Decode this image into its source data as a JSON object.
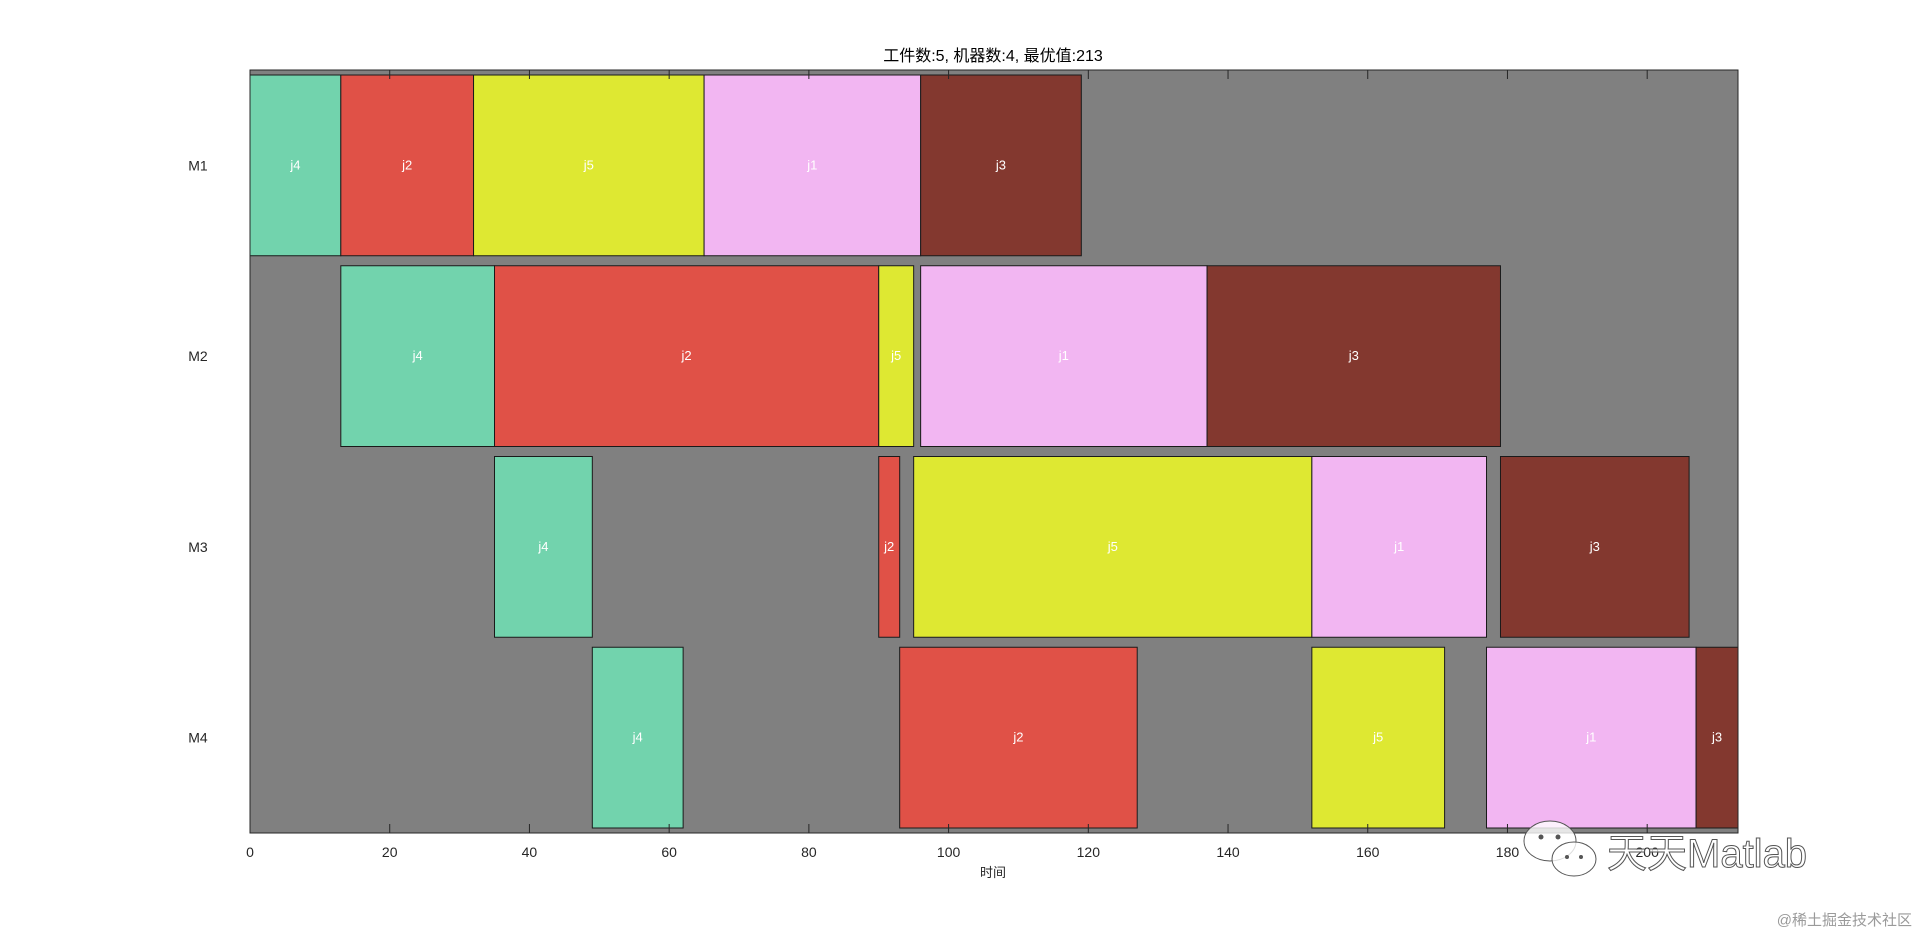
{
  "chart_data": {
    "type": "gantt",
    "title": "工件数:5, 机器数:4, 最优值:213",
    "xlabel": "时间",
    "ylabel": "",
    "xlim": [
      0,
      213
    ],
    "xticks": [
      0,
      20,
      40,
      60,
      80,
      100,
      120,
      140,
      160,
      180,
      200
    ],
    "machines": [
      "M1",
      "M2",
      "M3",
      "M4"
    ],
    "background_color": "#808080",
    "job_colors": {
      "j1": "#F2B6F2",
      "j2": "#E05147",
      "j3": "#83382F",
      "j4": "#72D3AD",
      "j5": "#DEE832"
    },
    "tasks": [
      {
        "machine": "M1",
        "job": "j4",
        "start": 0,
        "end": 13
      },
      {
        "machine": "M1",
        "job": "j2",
        "start": 13,
        "end": 32
      },
      {
        "machine": "M1",
        "job": "j5",
        "start": 32,
        "end": 65
      },
      {
        "machine": "M1",
        "job": "j1",
        "start": 65,
        "end": 96
      },
      {
        "machine": "M1",
        "job": "j3",
        "start": 96,
        "end": 119
      },
      {
        "machine": "M2",
        "job": "j4",
        "start": 13,
        "end": 35
      },
      {
        "machine": "M2",
        "job": "j2",
        "start": 35,
        "end": 90
      },
      {
        "machine": "M2",
        "job": "j5",
        "start": 90,
        "end": 95
      },
      {
        "machine": "M2",
        "job": "j1",
        "start": 96,
        "end": 137
      },
      {
        "machine": "M2",
        "job": "j3",
        "start": 137,
        "end": 179
      },
      {
        "machine": "M3",
        "job": "j4",
        "start": 35,
        "end": 49
      },
      {
        "machine": "M3",
        "job": "j2",
        "start": 90,
        "end": 93
      },
      {
        "machine": "M3",
        "job": "j5",
        "start": 95,
        "end": 152
      },
      {
        "machine": "M3",
        "job": "j1",
        "start": 152,
        "end": 177
      },
      {
        "machine": "M3",
        "job": "j3",
        "start": 179,
        "end": 206
      },
      {
        "machine": "M4",
        "job": "j4",
        "start": 49,
        "end": 62
      },
      {
        "machine": "M4",
        "job": "j2",
        "start": 93,
        "end": 127
      },
      {
        "machine": "M4",
        "job": "j5",
        "start": 152,
        "end": 171
      },
      {
        "machine": "M4",
        "job": "j1",
        "start": 177,
        "end": 207
      },
      {
        "machine": "M4",
        "job": "j3",
        "start": 207,
        "end": 213
      }
    ]
  },
  "watermark": {
    "text": "天天Matlab",
    "icon": "wechat-icon"
  },
  "corner_credit": "@稀土掘金技术社区"
}
